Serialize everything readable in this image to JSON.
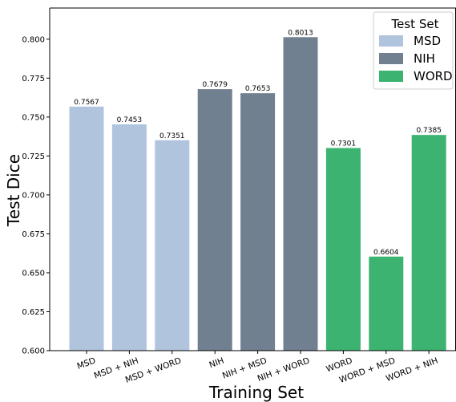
{
  "chart_data": {
    "type": "bar",
    "xlabel": "Training Set",
    "ylabel": "Test Dice",
    "ylim": [
      0.6,
      0.82
    ],
    "yticks": [
      0.6,
      0.625,
      0.65,
      0.675,
      0.7,
      0.725,
      0.75,
      0.775,
      0.8
    ],
    "grid": false,
    "categories": [
      "MSD",
      "MSD + NIH",
      "MSD + WORD",
      "NIH",
      "NIH + MSD",
      "NIH + WORD",
      "WORD",
      "WORD + MSD",
      "WORD + NIH"
    ],
    "values": [
      0.7567,
      0.7453,
      0.7351,
      0.7679,
      0.7653,
      0.8013,
      0.7301,
      0.6604,
      0.7385
    ],
    "value_labels": [
      "0.7567",
      "0.7453",
      "0.7351",
      "0.7679",
      "0.7653",
      "0.8013",
      "0.7301",
      "0.6604",
      "0.7385"
    ],
    "test_set": [
      "MSD",
      "MSD",
      "MSD",
      "NIH",
      "NIH",
      "NIH",
      "WORD",
      "WORD",
      "WORD"
    ],
    "legend": {
      "title": "Test Set",
      "placement": "top-right",
      "entries": [
        {
          "name": "MSD",
          "color": "#b0c4de"
        },
        {
          "name": "NIH",
          "color": "#708090"
        },
        {
          "name": "WORD",
          "color": "#3cb371"
        }
      ]
    }
  }
}
